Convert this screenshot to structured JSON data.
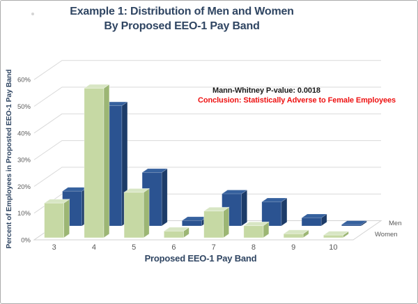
{
  "title": {
    "line1": "Example 1: Distribution of Men and Women",
    "line2": "By Proposed EEO-1 Pay Band"
  },
  "annotation": {
    "pvalue_line": "Mann-Whitney P-value: 0.0018",
    "conclusion_line": "Conclusion: Statistically Adverse to Female Employees"
  },
  "colors": {
    "title_text": "#2f4562",
    "tick_text": "#595959",
    "gridline": "#d9d9d9",
    "floor_edge": "#d2d2d2",
    "annotation_black": "#1a1a1a",
    "annotation_red": "#ee1111"
  },
  "chart_data": {
    "type": "bar",
    "projection": "3d",
    "title": "Example 1: Distribution of Men and Women By Proposed EEO-1 Pay Band",
    "xlabel": "Proposed EEO-1 Pay Band",
    "ylabel": "Percent of Employees in Proposted EEO-1 Pay Band",
    "categories": [
      "3",
      "4",
      "5",
      "6",
      "7",
      "8",
      "9",
      "10"
    ],
    "series": [
      {
        "name": "Men",
        "depth_position": "back",
        "values": [
          13,
          45,
          20,
          2,
          12,
          9,
          3,
          0.5
        ],
        "color_front": "#2b5391",
        "color_top": "#36619e",
        "color_side": "#1d3c69"
      },
      {
        "name": "Women",
        "depth_position": "front",
        "values": [
          13,
          56,
          17,
          2.5,
          10,
          4.5,
          1.5,
          1
        ],
        "color_front": "#c6d9a4",
        "color_top": "#d8e6c4",
        "color_side": "#9cb674"
      }
    ],
    "y_ticks": [
      "0%",
      "10%",
      "20%",
      "30%",
      "40%",
      "50%",
      "60%"
    ],
    "y_tick_values": [
      0,
      10,
      20,
      30,
      40,
      50,
      60
    ],
    "ylim": [
      0,
      60
    ],
    "grid": true,
    "legend_position": "depth-axis-right"
  }
}
